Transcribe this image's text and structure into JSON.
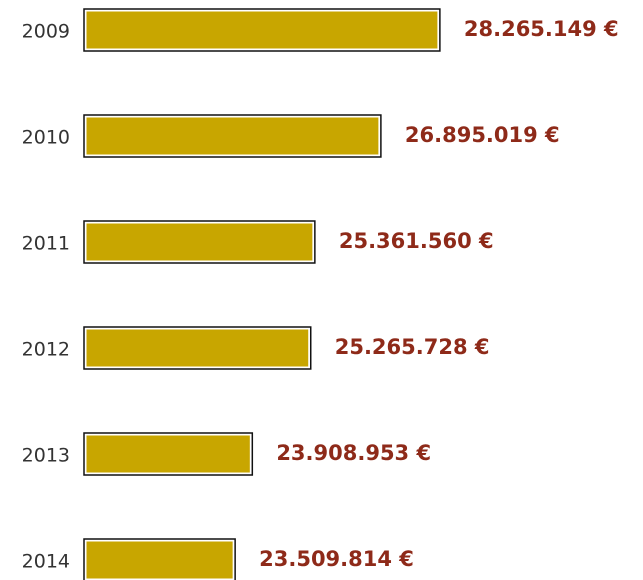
{
  "chart_data": {
    "type": "bar",
    "orientation": "horizontal",
    "categories": [
      "2009",
      "2010",
      "2011",
      "2012",
      "2013",
      "2014"
    ],
    "values": [
      28265149,
      26895019,
      25361560,
      25265728,
      23908953,
      23509814
    ],
    "value_labels": [
      "28.265.149 €",
      "26.895.019 €",
      "25.361.560 €",
      "25.265.728 €",
      "23.908.953 €",
      "23.509.814 €"
    ],
    "color": "#c8a600",
    "xlim": [
      20000000,
      28500000
    ]
  }
}
